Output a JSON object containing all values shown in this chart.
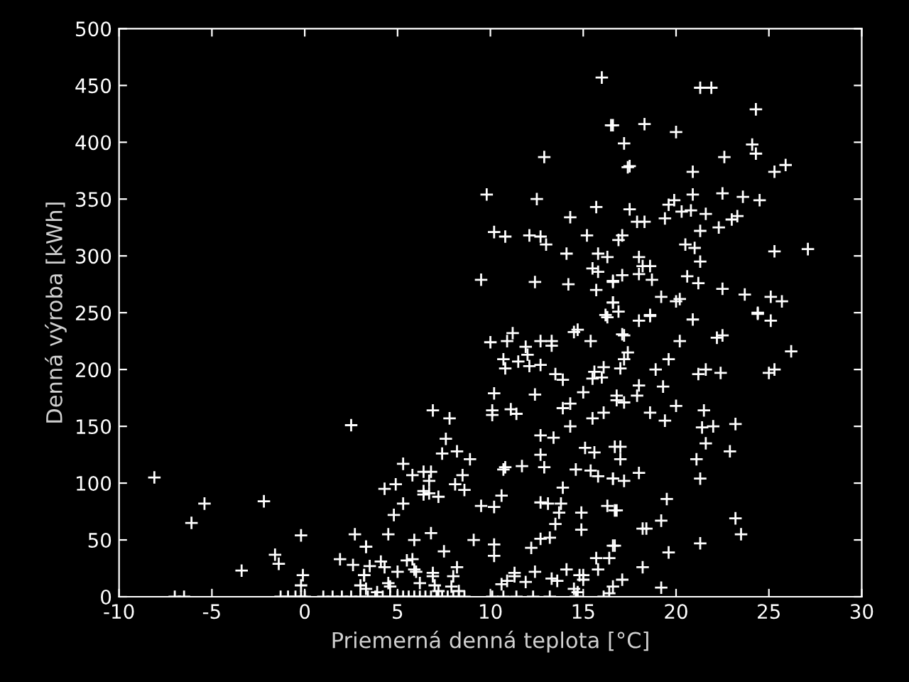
{
  "chart_data": {
    "type": "scatter",
    "xlabel": "Priemerná denná teplota [°C]",
    "ylabel": "Denná výroba [kWh]",
    "xlim": [
      -10,
      30
    ],
    "xticks": [
      -10,
      -5,
      0,
      5,
      10,
      15,
      20,
      25,
      30
    ],
    "ylim": [
      0,
      500
    ],
    "yticks": [
      0,
      50,
      100,
      150,
      200,
      250,
      300,
      350,
      400,
      450,
      500
    ],
    "marker": "cross",
    "grid": false,
    "series": [
      {
        "color": "#ffffff",
        "x": [
          -8.1,
          2.5,
          -6.1,
          -5.4,
          -2.2,
          -3.4,
          -0.2,
          -1.6,
          -1.4,
          -0.1,
          -0.2,
          1.9,
          2.6,
          2.7,
          3.3,
          3.2,
          3.0,
          -7.0,
          -6.5,
          -1.3,
          -0.9,
          -0.5,
          -0.2,
          0.0,
          1.0,
          1.5,
          2.0,
          2.5,
          3.0,
          16.3,
          14.5,
          14.7,
          11.2,
          10.0,
          10.9,
          11.9,
          12.7,
          13.3,
          13.3,
          15.4,
          12.0,
          10.7,
          11.5,
          10.8,
          12.1,
          12.7,
          13.5,
          13.9,
          15.6,
          16.1,
          15.5,
          16.0,
          10.2,
          12.4,
          15.0,
          13.9,
          14.3,
          6.9,
          7.8,
          10.1,
          10.1,
          11.1,
          11.4,
          15.5,
          16.1,
          14.3,
          12.7,
          13.4,
          7.6,
          7.4,
          8.2,
          8.9,
          15.1,
          15.6,
          12.7,
          10.7,
          10.8,
          11.7,
          12.9,
          14.6,
          15.4,
          15.8,
          16.6,
          5.3,
          5.8,
          6.4,
          6.8,
          6.7,
          8.5,
          4.3,
          4.9,
          6.4,
          6.4,
          6.7,
          7.2,
          8.1,
          8.6,
          13.9,
          5.3,
          4.8,
          9.5,
          10.2,
          10.6,
          12.7,
          13.1,
          13.8,
          13.7,
          13.5,
          14.9,
          14.9,
          16.3,
          16.7,
          4.5,
          6.8,
          5.9,
          7.5,
          9.1,
          3.3,
          10.2,
          10.2,
          12.2,
          12.7,
          13.2,
          16.6,
          15.7,
          16.4,
          15.8,
          3.5,
          4.1,
          4.3,
          5.0,
          5.5,
          5.8,
          5.9,
          6.0,
          6.9,
          6.9,
          8.0,
          8.2,
          3.2,
          11.3,
          11.3,
          10.6,
          10.9,
          11.9,
          12.4,
          14.1,
          13.3,
          13.6,
          14.8,
          15.0,
          15.0,
          14.5,
          14.7,
          4.5,
          4.6,
          6.2,
          7.0,
          7.2,
          7.9,
          8.3,
          3.9,
          3.3,
          16.6,
          16.4,
          3.4,
          3.8,
          4.2,
          4.6,
          5.0,
          5.3,
          5.6,
          5.9,
          6.2,
          6.5,
          6.8,
          7.1,
          7.4,
          7.7,
          8.0,
          8.3,
          8.6,
          10.1,
          10.7,
          11.4,
          12.3,
          13.2,
          14.6,
          16.1,
          16.0,
          16.5,
          12.9,
          9.8,
          12.5,
          15.7,
          14.3,
          10.2,
          10.8,
          12.1,
          12.7,
          13.0,
          15.2,
          14.1,
          15.8,
          16.3,
          15.5,
          15.8,
          9.5,
          12.4,
          14.2,
          15.7,
          16.6,
          16.6,
          16.2,
          21.3,
          21.9,
          24.3,
          16.6,
          18.3,
          20.0,
          17.2,
          24.1,
          24.3,
          22.6,
          17.4,
          17.5,
          20.9,
          25.3,
          25.9,
          20.9,
          22.5,
          23.6,
          24.5,
          17.5,
          19.6,
          19.9,
          20.3,
          20.8,
          21.6,
          19.4,
          17.9,
          18.3,
          23.0,
          23.3,
          21.3,
          22.3,
          16.9,
          17.1,
          20.5,
          21.0,
          21.3,
          25.3,
          27.1,
          18.0,
          18.2,
          18.6,
          16.6,
          17.1,
          18.0,
          18.7,
          20.6,
          21.2,
          22.5,
          19.2,
          20.0,
          20.2,
          23.7,
          25.1,
          25.7,
          16.6,
          16.9,
          18.6,
          24.4,
          18.0,
          18.6,
          20.9,
          24.4,
          25.1,
          17.1,
          17.2,
          20.2,
          22.2,
          22.5,
          26.2,
          17.4,
          17.2,
          17.0,
          19.6,
          18.9,
          21.2,
          21.6,
          22.4,
          25.0,
          25.3,
          18.0,
          19.3,
          16.8,
          17.9,
          16.8,
          17.2,
          20.0,
          18.6,
          19.4,
          21.5,
          21.4,
          22.0,
          23.2,
          16.7,
          17.0,
          17.0,
          21.6,
          21.1,
          22.9,
          18.0,
          16.6,
          17.2,
          21.3,
          19.5,
          16.8,
          19.2,
          18.2,
          18.4,
          23.2,
          23.5,
          16.7,
          21.3,
          19.6,
          18.2,
          17.1,
          19.2
        ],
        "values": [
          105,
          151,
          65,
          82,
          84,
          23,
          54,
          37,
          29,
          19,
          10,
          33,
          28,
          55,
          44,
          19,
          10,
          0,
          0,
          0,
          0,
          0,
          0,
          0,
          0,
          0,
          0,
          0,
          0,
          246,
          233,
          235,
          232,
          224,
          225,
          220,
          225,
          225,
          221,
          225,
          213,
          209,
          207,
          201,
          203,
          204,
          196,
          191,
          198,
          202,
          192,
          193,
          179,
          178,
          180,
          166,
          170,
          164,
          157,
          164,
          160,
          165,
          161,
          157,
          162,
          150,
          142,
          140,
          139,
          126,
          128,
          121,
          131,
          127,
          125,
          112,
          114,
          115,
          114,
          112,
          111,
          106,
          104,
          117,
          107,
          110,
          110,
          102,
          107,
          95,
          99,
          93,
          90,
          91,
          88,
          99,
          94,
          96,
          82,
          72,
          80,
          79,
          89,
          83,
          82,
          82,
          74,
          64,
          74,
          59,
          80,
          76,
          55,
          56,
          50,
          40,
          50,
          44,
          46,
          36,
          43,
          51,
          52,
          45,
          34,
          34,
          24,
          27,
          31,
          26,
          22,
          32,
          33,
          24,
          22,
          21,
          18,
          18,
          26,
          19,
          21,
          18,
          11,
          14,
          13,
          22,
          24,
          16,
          14,
          19,
          19,
          15,
          7,
          4,
          12,
          9,
          12,
          10,
          5,
          9,
          5,
          4,
          7,
          9,
          3,
          0,
          0,
          0,
          0,
          0,
          0,
          0,
          0,
          0,
          0,
          0,
          0,
          0,
          0,
          0,
          0,
          0,
          0,
          0,
          0,
          0,
          0,
          0,
          0,
          457,
          415,
          387,
          354,
          350,
          343,
          334,
          321,
          317,
          318,
          317,
          310,
          318,
          302,
          302,
          299,
          289,
          286,
          279,
          277,
          275,
          270,
          277,
          259,
          248,
          448,
          448,
          429,
          415,
          416,
          409,
          399,
          398,
          390,
          387,
          378,
          379,
          374,
          374,
          380,
          354,
          355,
          352,
          349,
          341,
          345,
          349,
          339,
          340,
          337,
          333,
          330,
          330,
          332,
          335,
          322,
          325,
          314,
          318,
          310,
          307,
          295,
          304,
          306,
          299,
          291,
          291,
          278,
          283,
          284,
          279,
          282,
          276,
          271,
          264,
          260,
          262,
          266,
          264,
          260,
          259,
          251,
          248,
          250,
          243,
          247,
          244,
          249,
          243,
          231,
          230,
          225,
          228,
          230,
          216,
          215,
          209,
          201,
          209,
          200,
          196,
          200,
          197,
          197,
          200,
          186,
          185,
          177,
          177,
          173,
          171,
          168,
          162,
          155,
          164,
          149,
          150,
          152,
          132,
          132,
          121,
          135,
          121,
          128,
          109,
          104,
          102,
          104,
          86,
          76,
          67,
          60,
          60,
          69,
          55,
          45,
          47,
          39,
          26,
          15,
          8
        ]
      }
    ]
  }
}
